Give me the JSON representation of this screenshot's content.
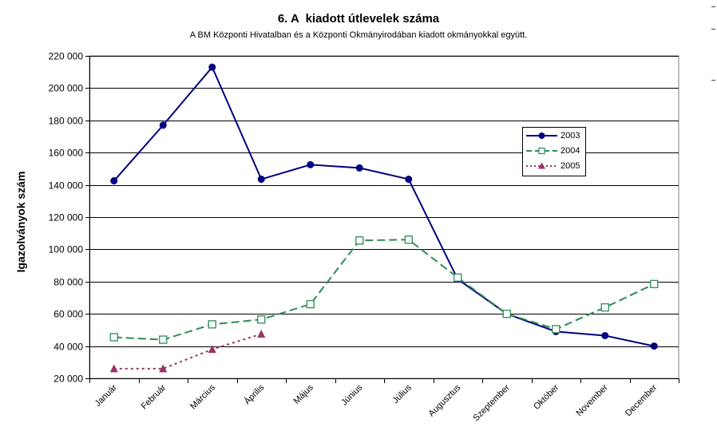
{
  "chart_data": {
    "type": "line",
    "title": "6. A  kiadott útlevelek száma",
    "subtitle": "A BM Központi Hivatalban és a Központi Okmányirodában kiadott okmányokkal együtt.",
    "ylabel": "Igazolványok szám",
    "xlabel": "",
    "ylim": [
      20000,
      220000
    ],
    "yticks": [
      20000,
      40000,
      60000,
      80000,
      100000,
      120000,
      140000,
      160000,
      180000,
      200000,
      220000
    ],
    "ytick_labels": [
      "20 000",
      "40 000",
      "60 000",
      "80 000",
      "100 000",
      "120 000",
      "140 000",
      "160 000",
      "180 000",
      "200 000",
      "220 000"
    ],
    "categories": [
      "Január",
      "Február",
      "Március",
      "Április",
      "Május",
      "Június",
      "Július",
      "Augusztus",
      "Szeptember",
      "Október",
      "November",
      "December"
    ],
    "grid": "horizontal",
    "legend_position": "right",
    "series": [
      {
        "name": "2003",
        "color": "#000080",
        "style": "solid",
        "marker": "filled-circle",
        "values": [
          142500,
          177000,
          213000,
          143500,
          152500,
          150500,
          143500,
          81500,
          60000,
          49000,
          46500,
          40000
        ]
      },
      {
        "name": "2004",
        "color": "#2E8B57",
        "style": "dashed",
        "marker": "open-square",
        "values": [
          45500,
          44000,
          53500,
          56500,
          66000,
          105500,
          106000,
          82500,
          60000,
          50500,
          64000,
          78500
        ]
      },
      {
        "name": "2005",
        "color": "#993366",
        "style": "dotted",
        "marker": "filled-triangle",
        "values": [
          26000,
          26000,
          38000,
          47500,
          null,
          null,
          null,
          null,
          null,
          null,
          null,
          null
        ]
      }
    ]
  }
}
